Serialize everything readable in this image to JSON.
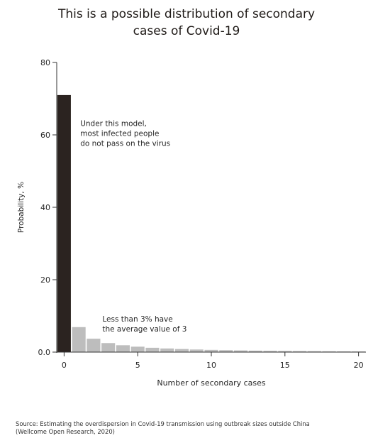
{
  "title_lines": [
    "This is a possible distribution of secondary",
    "cases of Covid-19"
  ],
  "source_lines": [
    "Source: Estimating the overdispersion in Covid-19 transmission using outbreak sizes outside China",
    "(Wellcome Open Research, 2020)"
  ],
  "colors": {
    "highlight_bar": "#2b2320",
    "other_bars": "#bdbdbd",
    "axis": "#333333",
    "text": "#262626"
  },
  "chart_data": {
    "type": "bar",
    "xlabel": "Number of secondary cases",
    "ylabel": "Probability, %",
    "xlim": [
      -0.5,
      20.5
    ],
    "ylim": [
      0,
      80
    ],
    "x_ticks": [
      0,
      5,
      10,
      15,
      20
    ],
    "x_tick_labels": [
      "0",
      "5",
      "10",
      "15",
      "20"
    ],
    "y_ticks": [
      0,
      20,
      40,
      60,
      80
    ],
    "y_tick_labels": [
      "0.0",
      "20",
      "40",
      "60",
      "80"
    ],
    "grid": false,
    "x": [
      0,
      1,
      2,
      3,
      4,
      5,
      6,
      7,
      8,
      9,
      10,
      11,
      12,
      13,
      14,
      15,
      16,
      17,
      18,
      19,
      20
    ],
    "values": [
      71.0,
      6.9,
      3.7,
      2.5,
      1.9,
      1.5,
      1.2,
      1.0,
      0.85,
      0.72,
      0.62,
      0.54,
      0.47,
      0.41,
      0.36,
      0.32,
      0.28,
      0.25,
      0.22,
      0.2,
      0.18
    ],
    "highlight_index": 0,
    "annotations": [
      {
        "lines": [
          "Under this model,",
          "most infected people",
          "do not pass on the virus"
        ],
        "x": 1.1,
        "y": 62.5
      },
      {
        "lines": [
          "Less than 3% have",
          "the average value of 3"
        ],
        "x": 2.6,
        "y": 8.4
      }
    ]
  }
}
